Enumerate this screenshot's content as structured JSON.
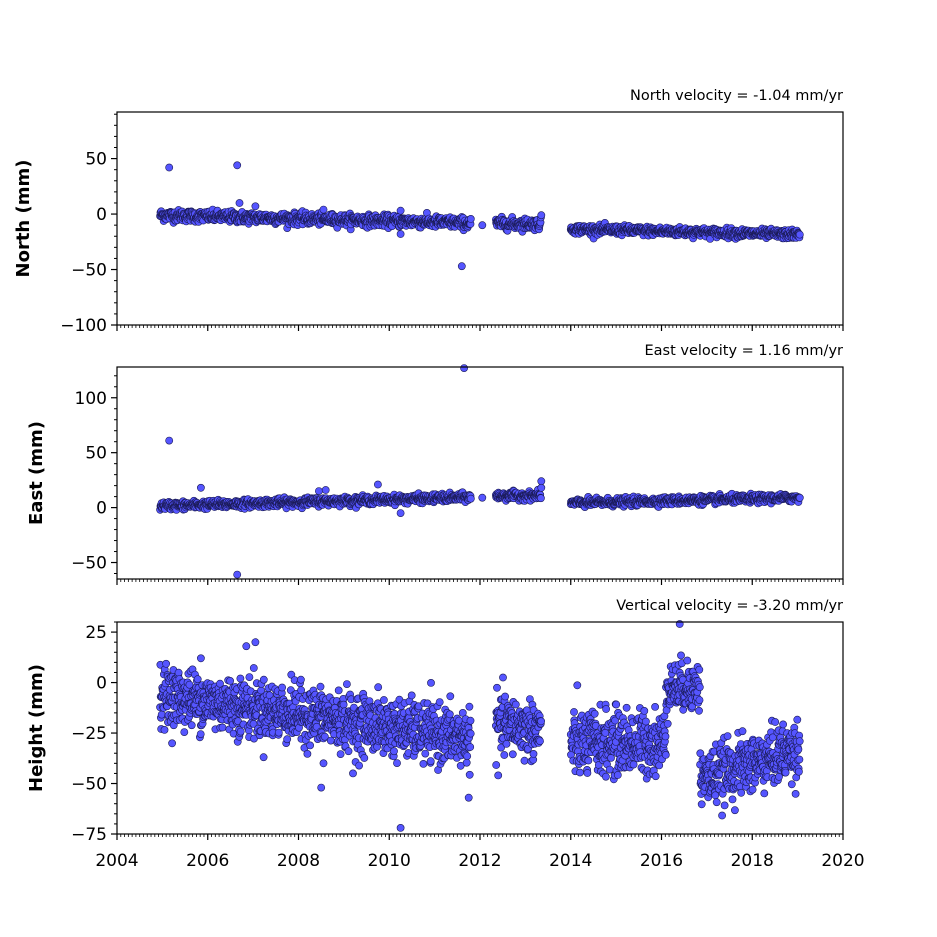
{
  "chart_data": {
    "type": "scatter",
    "x_ticks": [
      2004,
      2006,
      2008,
      2010,
      2012,
      2014,
      2016,
      2018,
      2020
    ],
    "xlim": [
      2004,
      2020
    ],
    "marker_color": "#5555ff",
    "marker_edge": "#1a1a55",
    "panels": [
      {
        "id": "north",
        "velocity_label": "North velocity = -1.04 mm/yr",
        "ylabel": "North (mm)",
        "ylim": [
          -100,
          92
        ],
        "y_ticks": [
          50,
          0,
          -50,
          -100
        ],
        "segments": [
          {
            "start": 2004.95,
            "end": 2011.8,
            "y0": -1.0,
            "slope": -1.04,
            "noise": 2.5,
            "step": 0.008
          },
          {
            "start": 2012.35,
            "end": 2013.35,
            "y0": -8.5,
            "slope": -0.5,
            "noise": 2.5,
            "step": 0.008
          },
          {
            "start": 2014.0,
            "end": 2019.05,
            "y0": -13.5,
            "slope": -1.0,
            "noise": 2.0,
            "step": 0.008
          }
        ],
        "outliers": [
          [
            2005.15,
            42
          ],
          [
            2006.65,
            44
          ],
          [
            2006.7,
            10
          ],
          [
            2007.05,
            7
          ],
          [
            2008.55,
            4
          ],
          [
            2010.25,
            3
          ],
          [
            2010.25,
            -18
          ],
          [
            2011.6,
            -47
          ],
          [
            2012.05,
            -10
          ],
          [
            2013.35,
            -1
          ]
        ]
      },
      {
        "id": "east",
        "velocity_label": "East velocity = 1.16 mm/yr",
        "ylabel": "East (mm)",
        "ylim": [
          -65,
          128
        ],
        "y_ticks": [
          100,
          50,
          0,
          -50
        ],
        "segments": [
          {
            "start": 2004.95,
            "end": 2011.8,
            "y0": 1.5,
            "slope": 1.16,
            "noise": 1.8,
            "step": 0.008
          },
          {
            "start": 2012.35,
            "end": 2013.35,
            "y0": 10.5,
            "slope": 0.5,
            "noise": 1.8,
            "step": 0.008
          },
          {
            "start": 2014.0,
            "end": 2019.05,
            "y0": 4.0,
            "slope": 1.0,
            "noise": 1.8,
            "step": 0.008
          }
        ],
        "outliers": [
          [
            2005.15,
            61
          ],
          [
            2006.65,
            -61
          ],
          [
            2005.85,
            18
          ],
          [
            2008.45,
            15
          ],
          [
            2008.6,
            16
          ],
          [
            2009.75,
            21
          ],
          [
            2010.25,
            -5
          ],
          [
            2011.65,
            127
          ],
          [
            2013.35,
            24
          ],
          [
            2013.35,
            18
          ],
          [
            2012.05,
            9
          ]
        ]
      },
      {
        "id": "height",
        "velocity_label": "Vertical velocity = -3.20 mm/yr",
        "ylabel": "Height (mm)",
        "ylim": [
          -75,
          30
        ],
        "y_ticks": [
          25,
          0,
          -25,
          -50,
          -75
        ],
        "segments": [
          {
            "start": 2004.95,
            "end": 2011.8,
            "y0": -6.0,
            "slope": -3.2,
            "noise": 7.0,
            "step": 0.006
          },
          {
            "start": 2012.35,
            "end": 2013.35,
            "y0": -20.0,
            "slope": -4.0,
            "noise": 7.0,
            "step": 0.006
          },
          {
            "start": 2014.0,
            "end": 2016.1,
            "y0": -30.0,
            "slope": 0.0,
            "noise": 8.0,
            "step": 0.006
          },
          {
            "start": 2016.1,
            "end": 2016.85,
            "y0": -2.0,
            "slope": 0.0,
            "noise": 6.0,
            "step": 0.006
          },
          {
            "start": 2016.85,
            "end": 2019.05,
            "y0": -48.0,
            "slope": 7.0,
            "noise": 7.0,
            "step": 0.006
          }
        ],
        "outliers": [
          [
            2006.85,
            18
          ],
          [
            2007.05,
            20
          ],
          [
            2010.25,
            -72
          ],
          [
            2011.75,
            -57
          ],
          [
            2016.4,
            29
          ],
          [
            2005.85,
            12
          ],
          [
            2008.5,
            -52
          ],
          [
            2008.55,
            -40
          ],
          [
            2009.2,
            -45
          ],
          [
            2012.4,
            -46
          ]
        ]
      }
    ]
  }
}
